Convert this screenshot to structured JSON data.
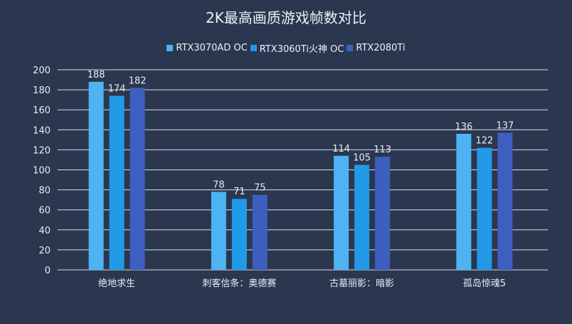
{
  "title": "2K最高画质游戏帧数对比",
  "legend": [
    {
      "label": "RTX3070AD OC",
      "color": "#4db3f2"
    },
    {
      "label": "RTX3060Ti火神 OC",
      "color": "#2299e6"
    },
    {
      "label": "RTX2080Ti",
      "color": "#3d5fbf"
    }
  ],
  "chart_data": {
    "type": "bar",
    "title": "2K最高画质游戏帧数对比",
    "xlabel": "",
    "ylabel": "",
    "ylim": [
      0,
      200
    ],
    "yticks": [
      0,
      20,
      40,
      60,
      80,
      100,
      120,
      140,
      160,
      180,
      200
    ],
    "grid": true,
    "legend_position": "top",
    "categories": [
      "绝地求生",
      "刺客信条：奥德赛",
      "古墓丽影：暗影",
      "孤岛惊魂5"
    ],
    "series": [
      {
        "name": "RTX3070AD OC",
        "color": "#4db3f2",
        "values": [
          188,
          78,
          114,
          136
        ]
      },
      {
        "name": "RTX3060Ti火神 OC",
        "color": "#2299e6",
        "values": [
          174,
          71,
          105,
          122
        ]
      },
      {
        "name": "RTX2080Ti",
        "color": "#3d5fbf",
        "values": [
          182,
          75,
          113,
          137
        ]
      }
    ]
  }
}
